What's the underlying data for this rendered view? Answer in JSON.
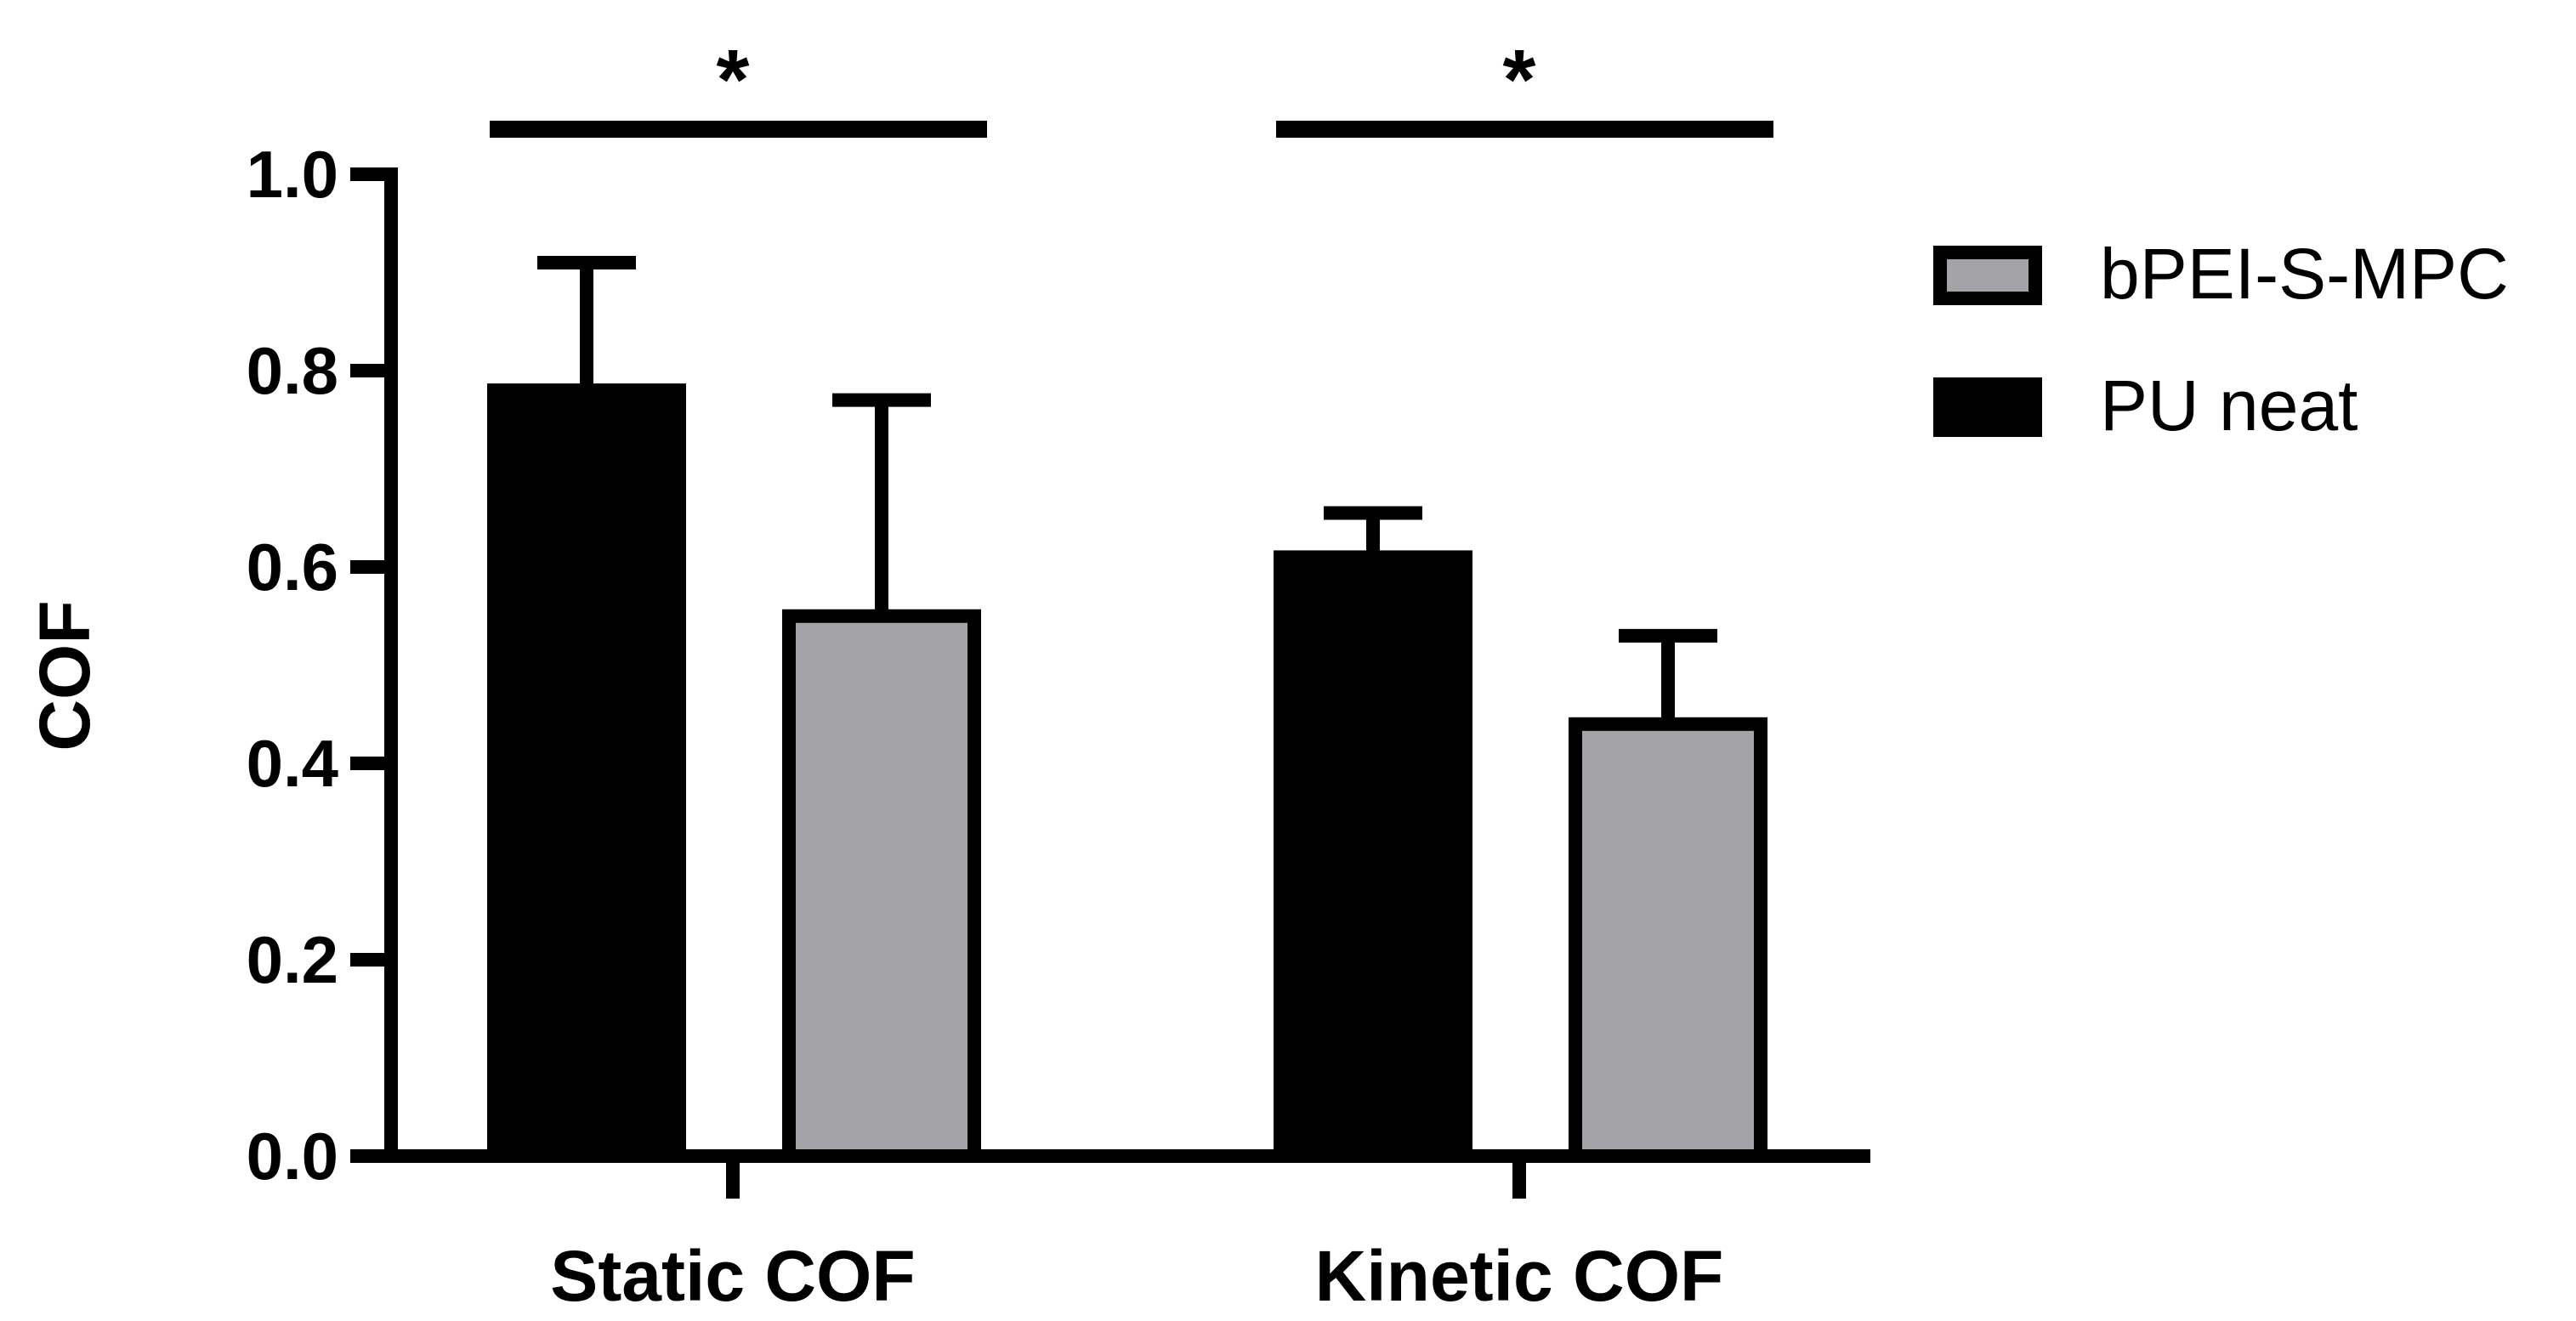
{
  "chart_data": {
    "type": "bar",
    "title": "",
    "xlabel": "",
    "ylabel": "COF",
    "ylim": [
      0,
      1.0
    ],
    "yticks": [
      "0.0",
      "0.2",
      "0.4",
      "0.6",
      "0.8",
      "1.0"
    ],
    "categories": [
      "Static COF",
      "Kinetic COF"
    ],
    "series": [
      {
        "name": "PU neat",
        "color": "#000000",
        "values": [
          0.78,
          0.61
        ],
        "errors": [
          0.13,
          0.045
        ]
      },
      {
        "name": "bPEI-S-MPC",
        "color": "#a3a3a8",
        "values": [
          0.55,
          0.44
        ],
        "errors": [
          0.22,
          0.09
        ]
      }
    ],
    "legend": {
      "position": "top-right",
      "order": [
        "bPEI-S-MPC",
        "PU neat"
      ]
    },
    "significance": [
      {
        "category": "Static COF",
        "label": "*"
      },
      {
        "category": "Kinetic COF",
        "label": "*"
      }
    ],
    "grid": false
  }
}
